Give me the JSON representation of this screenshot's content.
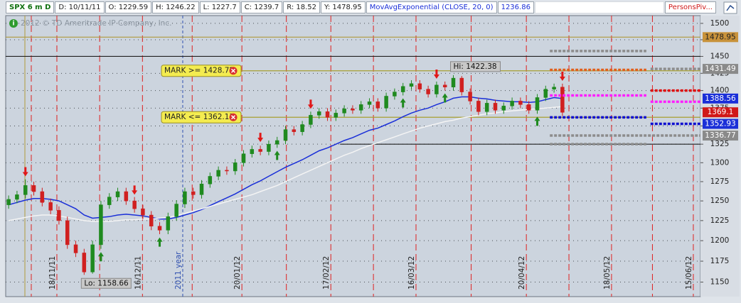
{
  "chart_data": {
    "type": "candlestick",
    "header": {
      "symbol": "SPX 6 m D",
      "fields": [
        "D: 10/11/11",
        "O: 1229.59",
        "H: 1246.22",
        "L: 1227.7",
        "C: 1239.7",
        "R: 18.52",
        "Y: 1478.95"
      ],
      "study": "MovAvgExponential (CLOSE, 20, 0)",
      "study_value": "1236.86",
      "pivots_study": "PersonsPiv..."
    },
    "copyright": "2012 © TD Ameritrade IP Company, Inc.",
    "log": true,
    "grid": true,
    "up_color": "#1f8a1f",
    "down_color": "#d02020",
    "xlim": [
      -0.7,
      164.9
    ],
    "ylim": [
      1133,
      1512
    ],
    "yticks": [
      1150,
      1175,
      1200,
      1225,
      1250,
      1275,
      1300,
      1325,
      1350,
      1375,
      1400,
      1425,
      1450,
      1475,
      1500
    ],
    "xticks": [
      {
        "value": 11.5,
        "label": "18/11/11"
      },
      {
        "value": 31.9,
        "label": "16/12/11"
      },
      {
        "value": 55.6,
        "label": "20/01/12"
      },
      {
        "value": 76.8,
        "label": "17/02/12"
      },
      {
        "value": 97.1,
        "label": "16/03/12"
      },
      {
        "value": 123.4,
        "label": "20/04/12"
      },
      {
        "value": 143.7,
        "label": "18/05/12"
      },
      {
        "value": 163.2,
        "label": "15/06/12"
      }
    ],
    "year_marker": {
      "label": "2011 year",
      "x": 41.5
    },
    "x": [
      0,
      2,
      4,
      6,
      8,
      10,
      12,
      14,
      16,
      18,
      20,
      22,
      24,
      26,
      28,
      30,
      32,
      34,
      36,
      38,
      40,
      42,
      44,
      46,
      48,
      50,
      52,
      54,
      56,
      58,
      60,
      62,
      64,
      66,
      68,
      70,
      72,
      74,
      76,
      78,
      80,
      82,
      84,
      86,
      88,
      90,
      92,
      94,
      96,
      98,
      100,
      102,
      104,
      106,
      108,
      110,
      112,
      114,
      116,
      118,
      120,
      122,
      124,
      126,
      128,
      130,
      132
    ],
    "open": [
      1245,
      1252,
      1258,
      1270,
      1262,
      1248,
      1238,
      1225,
      1195,
      1185,
      1162,
      1195,
      1245,
      1255,
      1262,
      1250,
      1240,
      1232,
      1218,
      1213,
      1230,
      1246,
      1262,
      1258,
      1272,
      1282,
      1290,
      1289,
      1300,
      1312,
      1318,
      1315,
      1325,
      1330,
      1345,
      1342,
      1352,
      1365,
      1370,
      1362,
      1368,
      1374,
      1372,
      1380,
      1384,
      1375,
      1392,
      1398,
      1406,
      1410,
      1402,
      1395,
      1408,
      1405,
      1418,
      1398,
      1385,
      1370,
      1382,
      1372,
      1378,
      1385,
      1380,
      1372,
      1390,
      1402,
      1405
    ],
    "high": [
      1257,
      1263,
      1278,
      1275,
      1267,
      1253,
      1243,
      1230,
      1200,
      1190,
      1200,
      1250,
      1260,
      1267,
      1267,
      1255,
      1245,
      1237,
      1223,
      1235,
      1251,
      1267,
      1267,
      1277,
      1287,
      1295,
      1295,
      1305,
      1317,
      1323,
      1323,
      1330,
      1335,
      1350,
      1350,
      1357,
      1370,
      1375,
      1375,
      1373,
      1379,
      1379,
      1385,
      1389,
      1389,
      1397,
      1403,
      1411,
      1415,
      1415,
      1407,
      1413,
      1413,
      1422.38,
      1421,
      1403,
      1390,
      1387,
      1387,
      1383,
      1390,
      1390,
      1385,
      1395,
      1407,
      1410,
      1410
    ],
    "low": [
      1240,
      1247,
      1253,
      1257,
      1243,
      1233,
      1220,
      1190,
      1180,
      1158.66,
      1160,
      1190,
      1240,
      1250,
      1245,
      1235,
      1227,
      1213,
      1208,
      1208,
      1225,
      1241,
      1253,
      1253,
      1267,
      1277,
      1284,
      1284,
      1295,
      1307,
      1310,
      1310,
      1320,
      1325,
      1337,
      1337,
      1347,
      1360,
      1357,
      1357,
      1363,
      1367,
      1367,
      1375,
      1370,
      1370,
      1387,
      1393,
      1401,
      1397,
      1390,
      1390,
      1400,
      1400,
      1393,
      1380,
      1365,
      1365,
      1367,
      1367,
      1373,
      1375,
      1367,
      1367,
      1385,
      1397,
      1364
    ],
    "close": [
      1252,
      1258,
      1270,
      1262,
      1248,
      1238,
      1225,
      1195,
      1185,
      1162,
      1195,
      1245,
      1255,
      1262,
      1250,
      1240,
      1232,
      1218,
      1213,
      1230,
      1246,
      1262,
      1258,
      1272,
      1282,
      1290,
      1289,
      1300,
      1312,
      1318,
      1315,
      1325,
      1330,
      1345,
      1342,
      1352,
      1365,
      1370,
      1362,
      1368,
      1374,
      1372,
      1380,
      1384,
      1375,
      1392,
      1398,
      1406,
      1410,
      1402,
      1395,
      1408,
      1405,
      1418,
      1398,
      1385,
      1370,
      1382,
      1372,
      1378,
      1385,
      1380,
      1372,
      1390,
      1402,
      1405,
      1369
    ],
    "series": [
      {
        "name": "MovAvgExponential",
        "color": "#1a2fd8",
        "values": [
          1245,
          1248,
          1251,
          1253,
          1253,
          1252,
          1250,
          1245,
          1240,
          1232,
          1228,
          1229,
          1230,
          1232,
          1233,
          1232,
          1231,
          1229,
          1227,
          1227,
          1229,
          1232,
          1235,
          1239,
          1244,
          1249,
          1254,
          1259,
          1265,
          1271,
          1276,
          1282,
          1288,
          1294,
          1299,
          1304,
          1310,
          1316,
          1320,
          1325,
          1330,
          1334,
          1339,
          1344,
          1347,
          1352,
          1357,
          1363,
          1368,
          1372,
          1375,
          1380,
          1384,
          1389,
          1391,
          1391,
          1389,
          1388,
          1386,
          1385,
          1384,
          1384,
          1383,
          1384,
          1387,
          1390,
          1388.56
        ]
      },
      {
        "color": "#f4f4f4",
        "values": [
          1225,
          1227,
          1229,
          1231,
          1232,
          1232,
          1231,
          1229,
          1227,
          1225,
          1224,
          1224,
          1224,
          1225,
          1226,
          1226,
          1227,
          1227,
          1228,
          1229,
          1231,
          1234,
          1237,
          1240,
          1243,
          1246,
          1249,
          1252,
          1255,
          1258,
          1262,
          1266,
          1270,
          1275,
          1280,
          1285,
          1290,
          1295,
          1300,
          1305,
          1310,
          1314,
          1319,
          1323,
          1327,
          1331,
          1335,
          1339,
          1343,
          1347,
          1350,
          1353,
          1356,
          1358,
          1361,
          1363,
          1365,
          1367,
          1368,
          1370,
          1371,
          1372,
          1373,
          1374,
          1375,
          1376,
          1377
        ]
      }
    ],
    "lines": [
      {
        "value": 1478.95,
        "color": "#b09a3c"
      },
      {
        "value": 1450,
        "color": "#202020"
      },
      {
        "value": 1325,
        "color": "#202020",
        "from": 79
      }
    ],
    "marks": [
      {
        "label": "MARK >= 1428.72",
        "value": 1428.72
      },
      {
        "label": "MARK <= 1362.13",
        "value": 1362.13
      }
    ],
    "mark_color": "#a8a030",
    "levels": [
      {
        "color": "#8c8c8c",
        "x": [
          129,
          152
        ],
        "value": 1458
      },
      {
        "color": "#e0601c",
        "x": [
          129,
          152
        ],
        "value": 1430
      },
      {
        "color": "#ff20ff",
        "x": [
          129,
          152
        ],
        "value": 1393
      },
      {
        "color": "#1010d0",
        "x": [
          129,
          152
        ],
        "value": 1362
      },
      {
        "color": "#8c8c8c",
        "x": [
          129,
          165
        ],
        "value": 1336.77
      },
      {
        "color": "#8c8c8c",
        "x": [
          129,
          152
        ],
        "value": 1325
      },
      {
        "color": "#8c8c8c",
        "x": [
          153,
          165
        ],
        "value": 1431.49
      },
      {
        "color": "#e01010",
        "x": [
          153,
          165
        ],
        "value": 1400
      },
      {
        "color": "#ff20ff",
        "x": [
          153,
          165
        ],
        "value": 1384
      },
      {
        "color": "#1010d0",
        "x": [
          153,
          165
        ],
        "value": 1352.93
      }
    ],
    "price_labels": [
      {
        "value": 1478.95,
        "color": "#c8923a",
        "text_color": "#222"
      },
      {
        "value": 1431.49,
        "color": "#8a8a8a",
        "text_color": "#fff"
      },
      {
        "value": 1388.56,
        "color": "#1a2fd8",
        "text_color": "#fff"
      },
      {
        "value": 1369.1,
        "color": "#d01818",
        "text_color": "#fff"
      },
      {
        "value": 1352.93,
        "color": "#1a2fd8",
        "text_color": "#fff"
      },
      {
        "value": 1336.77,
        "color": "#8a8a8a",
        "text_color": "#fff"
      }
    ],
    "annotations": [
      {
        "text": "Hi: 1422.38",
        "x": 106,
        "value": 1422.38,
        "side": "above"
      },
      {
        "text": "Lo: 1158.66",
        "x": 18,
        "value": 1158.66,
        "side": "below"
      }
    ],
    "arrows": [
      {
        "x": 4,
        "value": 1282,
        "dir": "down"
      },
      {
        "x": 30,
        "value": 1258,
        "dir": "down"
      },
      {
        "x": 60,
        "value": 1328,
        "dir": "down"
      },
      {
        "x": 72,
        "value": 1374,
        "dir": "down"
      },
      {
        "x": 102,
        "value": 1417,
        "dir": "down"
      },
      {
        "x": 106,
        "value": 1427,
        "dir": "down"
      },
      {
        "x": 132,
        "value": 1414,
        "dir": "down"
      },
      {
        "x": 22,
        "value": 1186,
        "dir": "up"
      },
      {
        "x": 36,
        "value": 1204,
        "dir": "up"
      },
      {
        "x": 64,
        "value": 1316,
        "dir": "up"
      },
      {
        "x": 94,
        "value": 1389,
        "dir": "up"
      },
      {
        "x": 104,
        "value": 1396,
        "dir": "up"
      },
      {
        "x": 126,
        "value": 1363,
        "dir": "up"
      }
    ]
  }
}
